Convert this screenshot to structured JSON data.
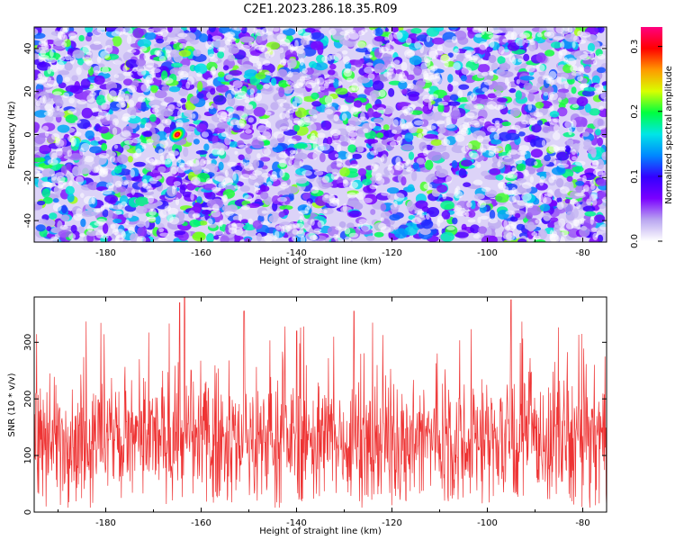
{
  "title": "C2E1.2023.286.18.35.R09",
  "chart_data": [
    {
      "type": "heatmap",
      "xlabel": "Height of straight line (km)",
      "ylabel": "Frequency (Hz)",
      "xlim": [
        -195,
        -75
      ],
      "ylim": [
        -50,
        50
      ],
      "xticks": [
        -180,
        -160,
        -140,
        -120,
        -100,
        -80
      ],
      "yticks": [
        -40,
        -20,
        0,
        20,
        40
      ],
      "colorbar": {
        "label": "Normalized spectral amplitude",
        "range": [
          0.0,
          0.33
        ],
        "ticks": [
          0.0,
          0.1,
          0.2,
          0.3
        ],
        "colormap": [
          "#ffffff",
          "#b9a6f0",
          "#7a00ff",
          "#3300ff",
          "#0088ff",
          "#00e6e6",
          "#00ff40",
          "#d8ff00",
          "#ff9900",
          "#ff0000",
          "#ff0080"
        ]
      },
      "peak": {
        "x": -165,
        "y": 0,
        "value": 0.33
      },
      "values_description": "noise-like field of spectral amplitudes mostly 0.02-0.15"
    },
    {
      "type": "line",
      "xlabel": "Height of straight line (km)",
      "ylabel": "SNR (10 * v/v)",
      "xlim": [
        -195,
        -75
      ],
      "ylim": [
        0,
        380
      ],
      "xticks": [
        -180,
        -160,
        -140,
        -120,
        -100,
        -80
      ],
      "yticks": [
        0,
        100,
        200,
        300
      ],
      "color": "#ee3333",
      "mean": 130,
      "spread": 75,
      "notable_peaks": [
        {
          "x": -163.5,
          "y": 380
        },
        {
          "x": -164.5,
          "y": 370
        },
        {
          "x": -95,
          "y": 375
        },
        {
          "x": -151,
          "y": 355
        },
        {
          "x": -128,
          "y": 355
        },
        {
          "x": -140,
          "y": 320
        }
      ]
    }
  ]
}
